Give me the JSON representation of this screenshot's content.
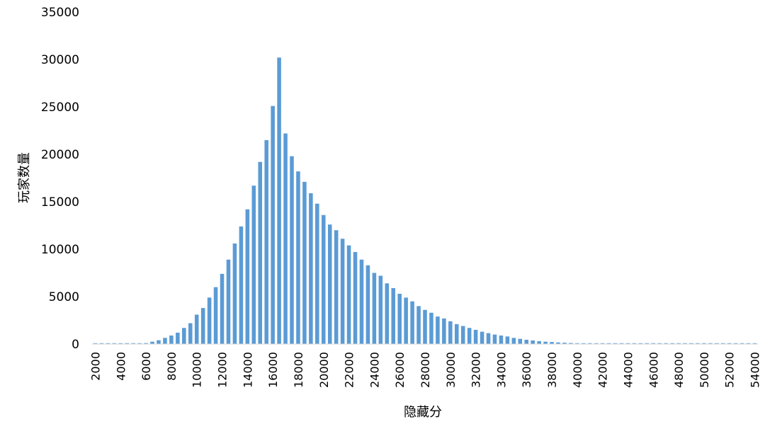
{
  "chart_data": {
    "type": "bar",
    "title": "",
    "xlabel": "隐藏分",
    "ylabel": "玩家数量",
    "ylim": [
      0,
      35000
    ],
    "yticks": [
      "0",
      "5000",
      "10000",
      "15000",
      "20000",
      "25000",
      "30000",
      "35000"
    ],
    "xticks": [
      "2000",
      "4000",
      "6000",
      "8000",
      "10000",
      "12000",
      "14000",
      "16000",
      "18000",
      "20000",
      "22000",
      "24000",
      "26000",
      "28000",
      "30000",
      "32000",
      "34000",
      "36000",
      "38000",
      "40000",
      "42000",
      "44000",
      "46000",
      "48000",
      "50000",
      "52000",
      "54000"
    ],
    "grid": false,
    "bar_color": "#5b9bd5",
    "x": [
      2000,
      2500,
      3000,
      3500,
      4000,
      4500,
      5000,
      5500,
      6000,
      6500,
      7000,
      7500,
      8000,
      8500,
      9000,
      9500,
      10000,
      10500,
      11000,
      11500,
      12000,
      12500,
      13000,
      13500,
      14000,
      14500,
      15000,
      15500,
      16000,
      16500,
      17000,
      17500,
      18000,
      18500,
      19000,
      19500,
      20000,
      20500,
      21000,
      21500,
      22000,
      22500,
      23000,
      23500,
      24000,
      24500,
      25000,
      25500,
      26000,
      26500,
      27000,
      27500,
      28000,
      28500,
      29000,
      29500,
      30000,
      30500,
      31000,
      31500,
      32000,
      32500,
      33000,
      33500,
      34000,
      34500,
      35000,
      35500,
      36000,
      36500,
      37000,
      37500,
      38000,
      38500,
      39000,
      39500,
      40000,
      40500,
      41000,
      41500,
      42000,
      42500,
      43000,
      43500,
      44000,
      44500,
      45000,
      45500,
      46000,
      46500,
      47000,
      47500,
      48000,
      48500,
      49000,
      49500,
      50000,
      50500,
      51000,
      51500,
      52000,
      52500,
      53000,
      53500,
      54000,
      54500
    ],
    "values": [
      5,
      5,
      10,
      10,
      15,
      20,
      30,
      50,
      100,
      250,
      400,
      650,
      900,
      1200,
      1700,
      2200,
      3100,
      3800,
      4900,
      6000,
      7400,
      8900,
      10600,
      12400,
      14200,
      16700,
      19200,
      21500,
      25100,
      30200,
      22200,
      19800,
      18200,
      17100,
      15900,
      14800,
      13600,
      12600,
      12000,
      11100,
      10400,
      9700,
      8900,
      8300,
      7500,
      7200,
      6400,
      5900,
      5300,
      4900,
      4500,
      4000,
      3600,
      3300,
      2900,
      2700,
      2400,
      2100,
      1900,
      1700,
      1500,
      1300,
      1150,
      1000,
      900,
      800,
      650,
      550,
      450,
      380,
      300,
      250,
      220,
      170,
      140,
      110,
      90,
      75,
      60,
      50,
      40,
      35,
      30,
      25,
      20,
      20,
      15,
      15,
      12,
      12,
      10,
      10,
      8,
      8,
      6,
      6,
      5,
      5,
      5,
      5,
      5,
      5,
      5,
      5,
      5,
      5
    ]
  }
}
